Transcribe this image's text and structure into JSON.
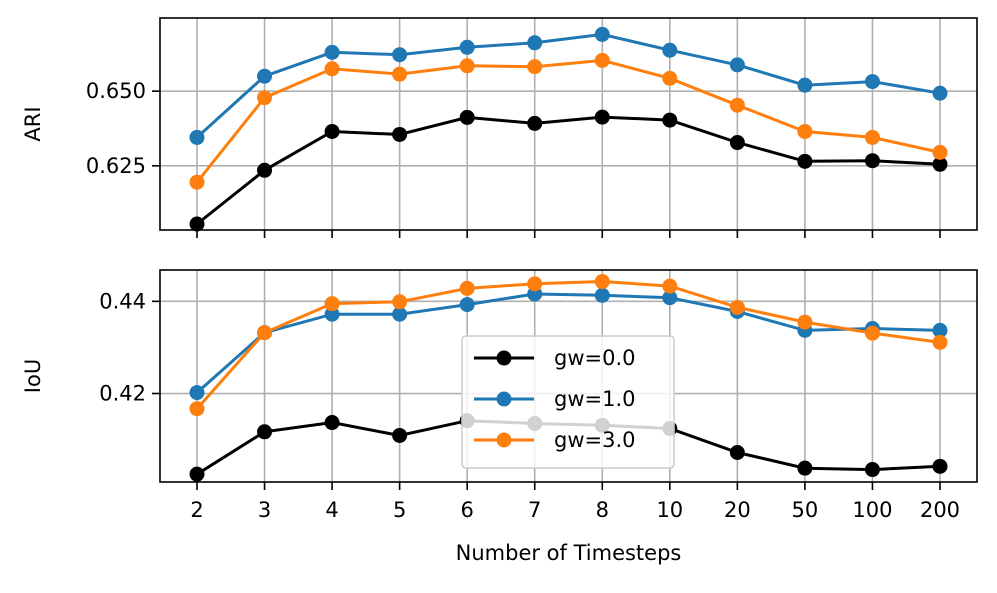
{
  "chart_data": [
    {
      "type": "line",
      "id": "ari",
      "xlabel": "",
      "ylabel": "ARI",
      "categories": [
        "2",
        "3",
        "4",
        "5",
        "6",
        "7",
        "8",
        "10",
        "20",
        "50",
        "100",
        "200"
      ],
      "ylim": [
        0.6035,
        0.6745
      ],
      "yticks": [
        0.625,
        0.65
      ],
      "ytick_labels": [
        "0.625",
        "0.650"
      ],
      "grid": true,
      "series": [
        {
          "name": "gw=0.0",
          "color": "#000000",
          "values": [
            0.6055,
            0.6235,
            0.6365,
            0.6355,
            0.6412,
            0.6392,
            0.6413,
            0.6403,
            0.6328,
            0.6265,
            0.6267,
            0.6255
          ]
        },
        {
          "name": "gw=1.0",
          "color": "#1f77b4",
          "values": [
            0.6345,
            0.655,
            0.663,
            0.6622,
            0.6647,
            0.6662,
            0.669,
            0.6637,
            0.6588,
            0.652,
            0.6532,
            0.6493
          ]
        },
        {
          "name": "gw=3.0",
          "color": "#ff7f0e",
          "values": [
            0.6195,
            0.6478,
            0.6575,
            0.6557,
            0.6585,
            0.6582,
            0.6603,
            0.6543,
            0.6453,
            0.6365,
            0.6345,
            0.6295
          ]
        }
      ]
    },
    {
      "type": "line",
      "id": "iou",
      "xlabel": "Number of Timesteps",
      "ylabel": "IoU",
      "categories": [
        "2",
        "3",
        "4",
        "5",
        "6",
        "7",
        "8",
        "10",
        "20",
        "50",
        "100",
        "200"
      ],
      "ylim": [
        0.4008,
        0.4468
      ],
      "yticks": [
        0.42,
        0.44
      ],
      "ytick_labels": [
        "0.42",
        "0.44"
      ],
      "grid": true,
      "legend": {
        "placement": "center-bottom",
        "entries": [
          "gw=0.0",
          "gw=1.0",
          "gw=3.0"
        ]
      },
      "series": [
        {
          "name": "gw=0.0",
          "color": "#000000",
          "values": [
            0.4025,
            0.4117,
            0.4137,
            0.4109,
            0.4141,
            0.4135,
            0.4131,
            0.4124,
            0.4072,
            0.4038,
            0.4035,
            0.4042
          ]
        },
        {
          "name": "gw=1.0",
          "color": "#1f77b4",
          "values": [
            0.4202,
            0.4332,
            0.4372,
            0.4372,
            0.4393,
            0.4416,
            0.4413,
            0.4408,
            0.4378,
            0.4337,
            0.4341,
            0.4337
          ]
        },
        {
          "name": "gw=3.0",
          "color": "#ff7f0e",
          "values": [
            0.4167,
            0.4332,
            0.4395,
            0.4399,
            0.4428,
            0.4438,
            0.4443,
            0.4433,
            0.4387,
            0.4355,
            0.4331,
            0.4311
          ]
        }
      ]
    }
  ]
}
